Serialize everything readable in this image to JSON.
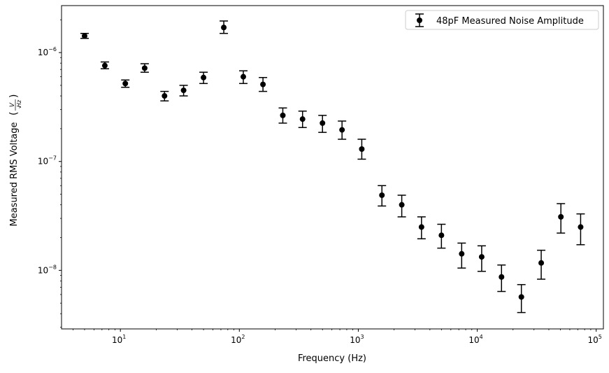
{
  "chart_data": {
    "type": "scatter",
    "xscale": "log",
    "yscale": "log",
    "xlabel": "Frequency (Hz)",
    "ylabel": "Measured RMS Voltage",
    "ylabel_unit": {
      "num": "V",
      "den": "Hz"
    },
    "xlim": [
      3.2,
      115000
    ],
    "ylim": [
      2.9e-09,
      2.7e-06
    ],
    "x_ticks": [
      {
        "value": 10,
        "mant": "10",
        "exp": "1"
      },
      {
        "value": 100,
        "mant": "10",
        "exp": "2"
      },
      {
        "value": 1000,
        "mant": "10",
        "exp": "3"
      },
      {
        "value": 10000,
        "mant": "10",
        "exp": "4"
      },
      {
        "value": 100000,
        "mant": "10",
        "exp": "5"
      }
    ],
    "y_ticks": [
      {
        "value": 1e-08,
        "mant": "10",
        "exp": "−8"
      },
      {
        "value": 1e-07,
        "mant": "10",
        "exp": "−7"
      },
      {
        "value": 1e-06,
        "mant": "10",
        "exp": "−6"
      }
    ],
    "legend_position": "upper right",
    "series": [
      {
        "name": "48pF Measured Noise Amplitude",
        "color": "#000000",
        "points": [
          {
            "x": 5,
            "y": 1.42e-06,
            "lo": 1.35e-06,
            "hi": 1.5e-06
          },
          {
            "x": 7.4,
            "y": 7.6e-07,
            "lo": 7.1e-07,
            "hi": 8.2e-07
          },
          {
            "x": 11,
            "y": 5.2e-07,
            "lo": 4.8e-07,
            "hi": 5.6e-07
          },
          {
            "x": 16,
            "y": 7.2e-07,
            "lo": 6.6e-07,
            "hi": 7.9e-07
          },
          {
            "x": 23.5,
            "y": 4e-07,
            "lo": 3.6e-07,
            "hi": 4.4e-07
          },
          {
            "x": 34,
            "y": 4.5e-07,
            "lo": 4e-07,
            "hi": 5e-07
          },
          {
            "x": 50,
            "y": 5.9e-07,
            "lo": 5.2e-07,
            "hi": 6.6e-07
          },
          {
            "x": 74,
            "y": 1.7e-06,
            "lo": 1.5e-06,
            "hi": 1.95e-06
          },
          {
            "x": 108,
            "y": 6e-07,
            "lo": 5.2e-07,
            "hi": 6.8e-07
          },
          {
            "x": 158,
            "y": 5.1e-07,
            "lo": 4.4e-07,
            "hi": 5.9e-07
          },
          {
            "x": 232,
            "y": 2.65e-07,
            "lo": 2.25e-07,
            "hi": 3.1e-07
          },
          {
            "x": 340,
            "y": 2.45e-07,
            "lo": 2.05e-07,
            "hi": 2.9e-07
          },
          {
            "x": 500,
            "y": 2.25e-07,
            "lo": 1.85e-07,
            "hi": 2.65e-07
          },
          {
            "x": 730,
            "y": 1.95e-07,
            "lo": 1.6e-07,
            "hi": 2.35e-07
          },
          {
            "x": 1070,
            "y": 1.3e-07,
            "lo": 1.05e-07,
            "hi": 1.6e-07
          },
          {
            "x": 1580,
            "y": 4.9e-08,
            "lo": 3.9e-08,
            "hi": 6e-08
          },
          {
            "x": 2320,
            "y": 4e-08,
            "lo": 3.1e-08,
            "hi": 4.9e-08
          },
          {
            "x": 3400,
            "y": 2.5e-08,
            "lo": 1.95e-08,
            "hi": 3.1e-08
          },
          {
            "x": 5000,
            "y": 2.1e-08,
            "lo": 1.6e-08,
            "hi": 2.65e-08
          },
          {
            "x": 7400,
            "y": 1.42e-08,
            "lo": 1.05e-08,
            "hi": 1.78e-08
          },
          {
            "x": 10900,
            "y": 1.33e-08,
            "lo": 9.8e-09,
            "hi": 1.68e-08
          },
          {
            "x": 16000,
            "y": 8.7e-09,
            "lo": 6.4e-09,
            "hi": 1.12e-08
          },
          {
            "x": 23500,
            "y": 5.7e-09,
            "lo": 4.1e-09,
            "hi": 7.4e-09
          },
          {
            "x": 34500,
            "y": 1.17e-08,
            "lo": 8.3e-09,
            "hi": 1.53e-08
          },
          {
            "x": 50500,
            "y": 3.1e-08,
            "lo": 2.2e-08,
            "hi": 4.1e-08
          },
          {
            "x": 74000,
            "y": 2.5e-08,
            "lo": 1.72e-08,
            "hi": 3.3e-08
          }
        ]
      }
    ]
  }
}
